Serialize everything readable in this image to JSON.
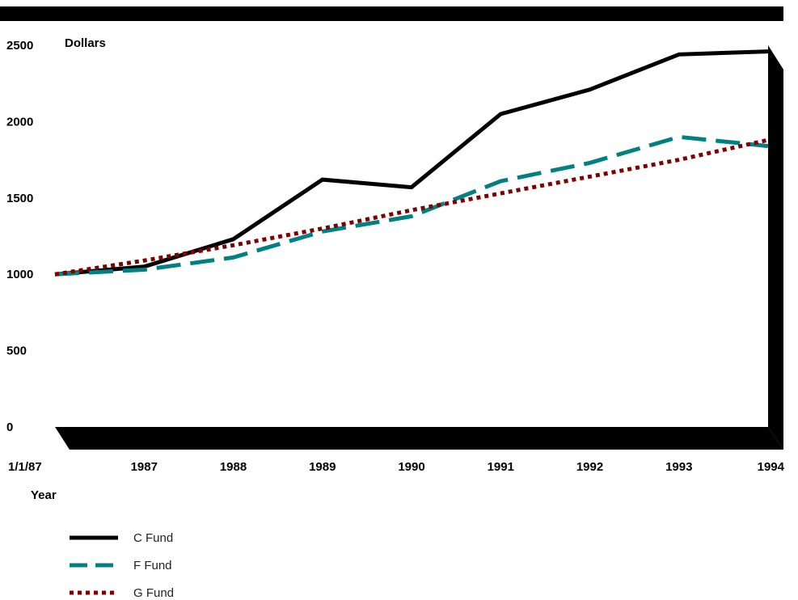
{
  "chart_data": {
    "type": "line",
    "title": "",
    "ylabel": "Dollars",
    "xlabel": "Year",
    "ylim": [
      0,
      2500
    ],
    "yticks": [
      0,
      500,
      1000,
      1500,
      2000,
      2500
    ],
    "categories": [
      "1/1/87",
      "1987",
      "1988",
      "1989",
      "1990",
      "1991",
      "1992",
      "1993",
      "1994"
    ],
    "grid": false,
    "legend_position": "bottom-left",
    "series": [
      {
        "name": "C Fund",
        "color": "#000000",
        "style": "solid",
        "values": [
          1000,
          1050,
          1230,
          1620,
          1570,
          2050,
          2210,
          2440,
          2460
        ]
      },
      {
        "name": "F Fund",
        "color": "#008080",
        "style": "dashed",
        "values": [
          1000,
          1030,
          1110,
          1280,
          1380,
          1610,
          1730,
          1900,
          1840
        ]
      },
      {
        "name": "G Fund",
        "color": "#800000",
        "style": "dotted",
        "values": [
          1000,
          1090,
          1190,
          1300,
          1420,
          1530,
          1640,
          1750,
          1880
        ]
      }
    ]
  }
}
